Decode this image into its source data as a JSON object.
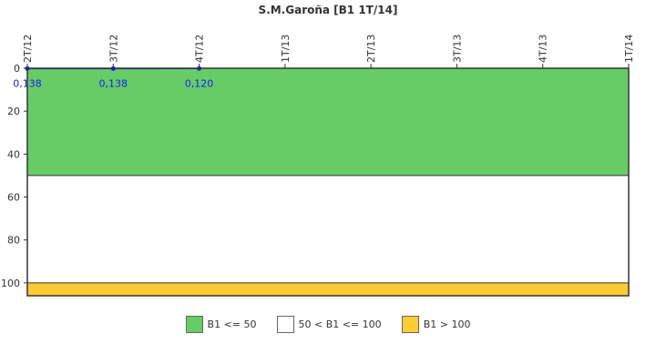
{
  "chart_data": {
    "type": "line",
    "title": "S.M.Garoña [B1 1T/14]",
    "x_categories": [
      "2T/12",
      "3T/12",
      "4T/12",
      "1T/13",
      "2T/13",
      "3T/13",
      "4T/13",
      "1T/14"
    ],
    "y_ticks": [
      "0",
      "20",
      "40",
      "60",
      "80",
      "100"
    ],
    "ylim": [
      0,
      106
    ],
    "y_inverted": true,
    "series": [
      {
        "values": [
          0.138,
          0.138,
          0.12
        ],
        "labels": [
          "0,138",
          "0,138",
          "0,120"
        ],
        "color": "#1a1aff"
      }
    ],
    "bands": [
      {
        "from": 0,
        "to": 50,
        "color": "#66cc66",
        "label": "B1 <= 50"
      },
      {
        "from": 50,
        "to": 100,
        "color": "#ffffff",
        "label": "50 < B1 <= 100"
      },
      {
        "from": 100,
        "to": 106,
        "color": "#ffcc33",
        "label": "B1 > 100"
      }
    ]
  }
}
